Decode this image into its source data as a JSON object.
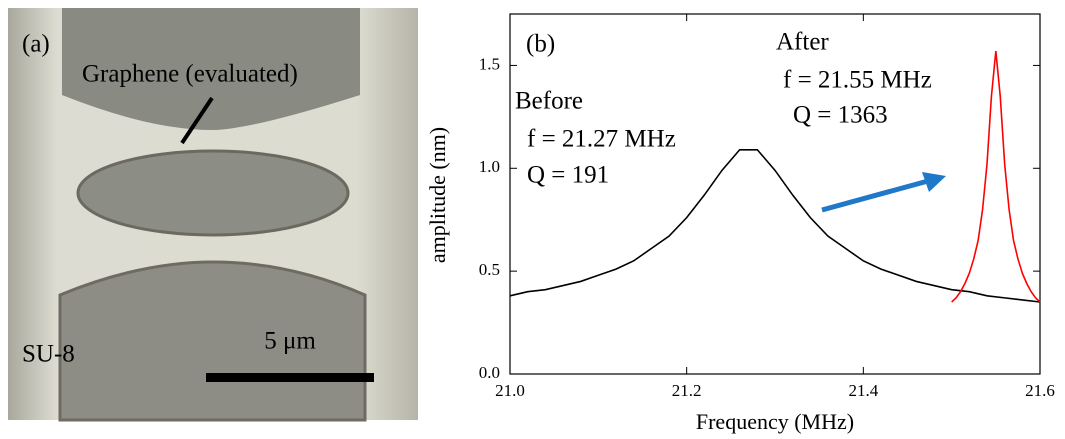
{
  "panel_a": {
    "label": "(a)",
    "annotations": [
      "Graphene (evaluated)",
      "SU-8"
    ],
    "scale_bar": "5 μm"
  },
  "chart_data": {
    "type": "line",
    "title": "(b)",
    "x_label": "Frequency (MHz)",
    "y_label": "amplitude (nm)",
    "annotations": [
      "f = 21.27 MHz",
      "Q = 191",
      "f = 21.55 MHz",
      "Q = 1363"
    ],
    "xlim": [
      21.0,
      21.6
    ],
    "ylim": [
      0,
      1.75
    ],
    "xticks": [
      {
        "value": 21,
        "label": "21.0"
      },
      21.2,
      21.4,
      21.6
    ],
    "yticks": [
      {
        "value": 0,
        "label": "0.0"
      },
      0.5,
      {
        "value": 1,
        "label": "1.0"
      },
      1.5
    ],
    "series": [
      {
        "name": "Before",
        "color": "#000000",
        "x": [
          21.0,
          21.02,
          21.04,
          21.06,
          21.08,
          21.1,
          21.12,
          21.14,
          21.16,
          21.18,
          21.2,
          21.22,
          21.24,
          21.26,
          21.28,
          21.3,
          21.32,
          21.34,
          21.36,
          21.38,
          21.4,
          21.42,
          21.44,
          21.46,
          21.48,
          21.5,
          21.52,
          21.54,
          21.56,
          21.58,
          21.6
        ],
        "values": [
          0.38,
          0.4,
          0.41,
          0.43,
          0.45,
          0.48,
          0.51,
          0.55,
          0.61,
          0.67,
          0.76,
          0.87,
          0.99,
          1.09,
          1.09,
          0.99,
          0.87,
          0.76,
          0.67,
          0.61,
          0.55,
          0.51,
          0.48,
          0.45,
          0.43,
          0.41,
          0.4,
          0.38,
          0.37,
          0.36,
          0.35
        ]
      },
      {
        "name": "After",
        "color": "#ff0000",
        "x": [
          21.5,
          21.505,
          21.51,
          21.515,
          21.52,
          21.525,
          21.53,
          21.535,
          21.54,
          21.545,
          21.55,
          21.555,
          21.56,
          21.565,
          21.57,
          21.575,
          21.58,
          21.585,
          21.59,
          21.595,
          21.6
        ],
        "values": [
          0.35,
          0.37,
          0.4,
          0.44,
          0.49,
          0.56,
          0.65,
          0.8,
          1.02,
          1.35,
          1.57,
          1.35,
          1.02,
          0.8,
          0.65,
          0.56,
          0.49,
          0.44,
          0.4,
          0.37,
          0.35
        ]
      }
    ]
  }
}
